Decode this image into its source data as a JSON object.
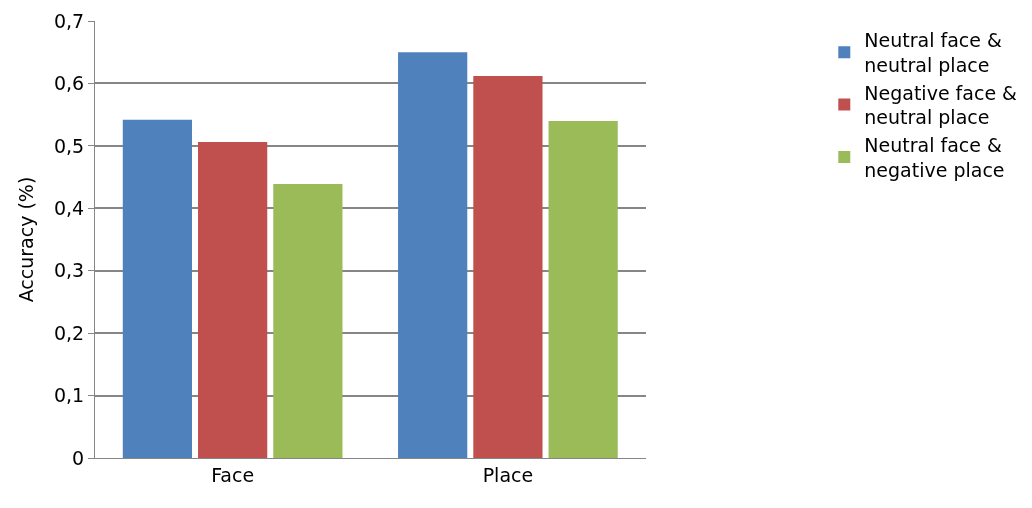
{
  "chart_data": {
    "type": "bar",
    "ylabel": "Accuracy (%)",
    "categories": [
      "Face",
      "Place"
    ],
    "series": [
      {
        "name": "Neutral face & neutral place",
        "color": "#4f81bd",
        "values": [
          0.542,
          0.65
        ]
      },
      {
        "name": "Negative face & neutral place",
        "color": "#c0504d",
        "values": [
          0.506,
          0.612
        ]
      },
      {
        "name": "Neutral face & negative place",
        "color": "#9bbb59",
        "values": [
          0.439,
          0.54
        ]
      }
    ],
    "ylim": [
      0,
      0.7
    ],
    "yticks": [
      {
        "value": 0,
        "label": "0"
      },
      {
        "value": 0.1,
        "label": "0,1"
      },
      {
        "value": 0.2,
        "label": "0,2"
      },
      {
        "value": 0.3,
        "label": "0,3"
      },
      {
        "value": 0.4,
        "label": "0,4"
      },
      {
        "value": 0.5,
        "label": "0,5"
      },
      {
        "value": 0.6,
        "label": "0,6"
      },
      {
        "value": 0.7,
        "label": "0,7"
      }
    ],
    "grid": "y",
    "legend": "right"
  }
}
